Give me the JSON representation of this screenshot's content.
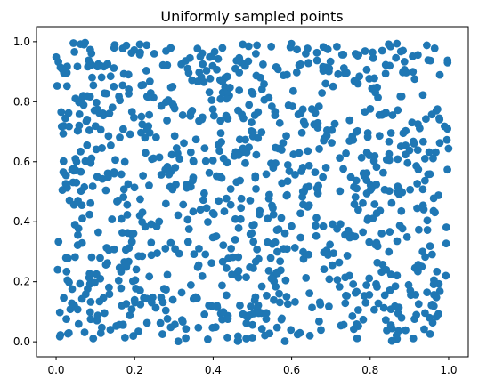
{
  "chart_data": {
    "type": "scatter",
    "title": "Uniformly sampled points",
    "xlabel": "",
    "ylabel": "",
    "xlim": [
      -0.05,
      1.05
    ],
    "ylim": [
      -0.05,
      1.05
    ],
    "grid": false,
    "legend": "none",
    "series": [
      {
        "color": "#1f77b4",
        "marker": "circle",
        "generator": "uniform",
        "seed": 20240611,
        "count": 1000,
        "range": [
          0,
          1
        ]
      }
    ],
    "x_ticks": [
      {
        "value": 0.0,
        "label": "0.0"
      },
      {
        "value": 0.2,
        "label": "0.2"
      },
      {
        "value": 0.4,
        "label": "0.4"
      },
      {
        "value": 0.6,
        "label": "0.6"
      },
      {
        "value": 0.8,
        "label": "0.8"
      },
      {
        "value": 1.0,
        "label": "1.0"
      }
    ],
    "y_ticks": [
      {
        "value": 0.0,
        "label": "0.0"
      },
      {
        "value": 0.2,
        "label": "0.2"
      },
      {
        "value": 0.4,
        "label": "0.4"
      },
      {
        "value": 0.6,
        "label": "0.6"
      },
      {
        "value": 0.8,
        "label": "0.8"
      },
      {
        "value": 1.0,
        "label": "1.0"
      }
    ]
  }
}
